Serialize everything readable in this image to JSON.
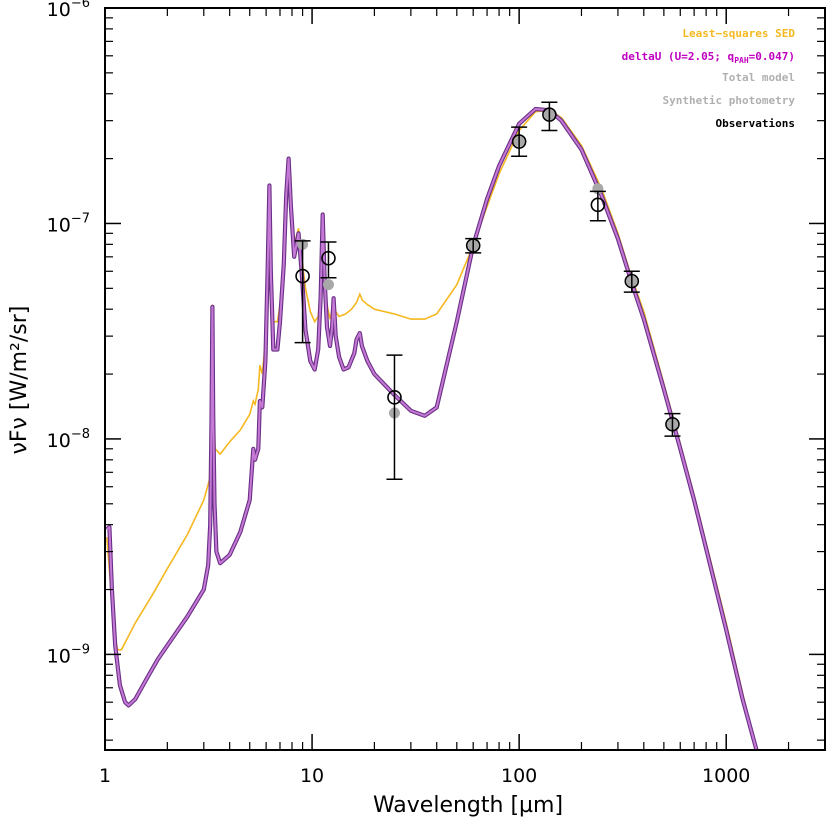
{
  "chart_data": {
    "type": "line",
    "title": "",
    "xlabel": "Wavelength [µm]",
    "ylabel": "νFν [W/m²/sr]",
    "xscale": "log",
    "yscale": "log",
    "xlim": [
      1,
      3000
    ],
    "ylim": [
      3.6e-10,
      1e-06
    ],
    "x_ticks": [
      {
        "value": 1,
        "label": "1"
      },
      {
        "value": 10,
        "label": "10"
      },
      {
        "value": 100,
        "label": "100"
      },
      {
        "value": 1000,
        "label": "1000"
      }
    ],
    "y_ticks": [
      {
        "value": 1e-09,
        "base": "10",
        "exp": "−9"
      },
      {
        "value": 1e-08,
        "base": "10",
        "exp": "−8"
      },
      {
        "value": 1e-07,
        "base": "10",
        "exp": "−7"
      },
      {
        "value": 1e-06,
        "base": "10",
        "exp": "−6"
      }
    ],
    "legend": {
      "placement": "top-right",
      "entries": [
        {
          "label": "Least−squares SED",
          "color": "#f5b820"
        },
        {
          "label_pre": "deltaU (U=2.05; q",
          "label_sub": "PAH",
          "label_post": "=0.047)",
          "color": "#c000c0"
        },
        {
          "label": "Total model",
          "color": "#b0b0b0"
        },
        {
          "label": "Synthetic photometry",
          "color": "#b0b0b0"
        },
        {
          "label": "Observations",
          "color": "#000000"
        }
      ]
    },
    "series": [
      {
        "name": "Least-squares SED",
        "color": "#f5b820",
        "points": [
          [
            1.02,
            3.5e-09
          ],
          [
            1.06,
            2.2e-09
          ],
          [
            1.1,
            1.3e-09
          ],
          [
            1.15,
            1.05e-09
          ],
          [
            1.2,
            1.05e-09
          ],
          [
            1.4,
            1.4e-09
          ],
          [
            1.7,
            1.9e-09
          ],
          [
            2.0,
            2.5e-09
          ],
          [
            2.5,
            3.6e-09
          ],
          [
            3.0,
            5.2e-09
          ],
          [
            3.2,
            6.5e-09
          ],
          [
            3.27,
            1.5e-08
          ],
          [
            3.3,
            4.2e-08
          ],
          [
            3.33,
            1.5e-08
          ],
          [
            3.4,
            9e-09
          ],
          [
            3.6,
            8.5e-09
          ],
          [
            4.0,
            9.7e-09
          ],
          [
            4.5,
            1.1e-08
          ],
          [
            5.0,
            1.3e-08
          ],
          [
            5.2,
            1.5e-08
          ],
          [
            5.3,
            1.45e-08
          ],
          [
            5.5,
            1.7e-08
          ],
          [
            5.6,
            2.2e-08
          ],
          [
            5.75,
            2e-08
          ],
          [
            5.9,
            2.6e-08
          ],
          [
            6.05,
            4e-08
          ],
          [
            6.15,
            8e-08
          ],
          [
            6.22,
            1.5e-07
          ],
          [
            6.3,
            8e-08
          ],
          [
            6.5,
            3.5e-08
          ],
          [
            6.8,
            3.5e-08
          ],
          [
            7.0,
            4.2e-08
          ],
          [
            7.3,
            7e-08
          ],
          [
            7.5,
            1.35e-07
          ],
          [
            7.7,
            2e-07
          ],
          [
            7.9,
            1.2e-07
          ],
          [
            8.2,
            8e-08
          ],
          [
            8.6,
            9.5e-08
          ],
          [
            8.9,
            7e-08
          ],
          [
            9.3,
            5e-08
          ],
          [
            9.8,
            3.9e-08
          ],
          [
            10.3,
            3.5e-08
          ],
          [
            10.7,
            3.7e-08
          ],
          [
            11.0,
            5e-08
          ],
          [
            11.25,
            1.1e-07
          ],
          [
            11.5,
            6e-08
          ],
          [
            11.8,
            4.2e-08
          ],
          [
            12.2,
            3.6e-08
          ],
          [
            12.5,
            4e-08
          ],
          [
            12.7,
            4.5e-08
          ],
          [
            13.0,
            3.9e-08
          ],
          [
            13.5,
            3.7e-08
          ],
          [
            14.5,
            3.8e-08
          ],
          [
            15.5,
            4e-08
          ],
          [
            16.4,
            4.3e-08
          ],
          [
            17.0,
            4.7e-08
          ],
          [
            17.5,
            4.4e-08
          ],
          [
            18.5,
            4.2e-08
          ],
          [
            20,
            4e-08
          ],
          [
            25,
            3.8e-08
          ],
          [
            30,
            3.6e-08
          ],
          [
            35,
            3.6e-08
          ],
          [
            40,
            3.8e-08
          ],
          [
            50,
            5.2e-08
          ],
          [
            60,
            7.9e-08
          ],
          [
            70,
            1.2e-07
          ],
          [
            80,
            1.7e-07
          ],
          [
            100,
            2.7e-07
          ],
          [
            120,
            3.3e-07
          ],
          [
            140,
            3.35e-07
          ],
          [
            160,
            3.1e-07
          ],
          [
            200,
            2.3e-07
          ],
          [
            250,
            1.45e-07
          ],
          [
            300,
            9e-08
          ],
          [
            350,
            5.6e-08
          ],
          [
            400,
            3.9e-08
          ],
          [
            500,
            1.8e-08
          ],
          [
            600,
            9.5e-09
          ],
          [
            700,
            5.5e-09
          ],
          [
            800,
            3.3e-09
          ],
          [
            1000,
            1.4e-09
          ],
          [
            1200,
            6.6e-10
          ],
          [
            1400,
            3.6e-10
          ]
        ]
      },
      {
        "name": "deltaU (U=2.05; qPAH=0.047)",
        "color": "#b060c0",
        "points": [
          [
            1.02,
            3.8e-09
          ],
          [
            1.05,
            3.9e-09
          ],
          [
            1.08,
            2e-09
          ],
          [
            1.12,
            1.1e-09
          ],
          [
            1.18,
            7.2e-10
          ],
          [
            1.25,
            6e-10
          ],
          [
            1.3,
            5.8e-10
          ],
          [
            1.4,
            6.2e-10
          ],
          [
            1.6,
            7.8e-10
          ],
          [
            1.8,
            9.5e-10
          ],
          [
            2.0,
            1.1e-09
          ],
          [
            2.5,
            1.5e-09
          ],
          [
            3.0,
            2e-09
          ],
          [
            3.15,
            2.6e-09
          ],
          [
            3.22,
            4e-09
          ],
          [
            3.27,
            1.2e-08
          ],
          [
            3.3,
            4.1e-08
          ],
          [
            3.33,
            1.3e-08
          ],
          [
            3.38,
            5e-09
          ],
          [
            3.45,
            3e-09
          ],
          [
            3.6,
            2.65e-09
          ],
          [
            4.0,
            2.9e-09
          ],
          [
            4.5,
            3.7e-09
          ],
          [
            5.0,
            5.2e-09
          ],
          [
            5.2,
            9e-09
          ],
          [
            5.3,
            8e-09
          ],
          [
            5.5,
            9e-09
          ],
          [
            5.6,
            1.5e-08
          ],
          [
            5.75,
            1.4e-08
          ],
          [
            5.95,
            2.3e-08
          ],
          [
            6.1,
            6e-08
          ],
          [
            6.22,
            1.5e-07
          ],
          [
            6.32,
            6e-08
          ],
          [
            6.5,
            2.6e-08
          ],
          [
            6.8,
            2.6e-08
          ],
          [
            7.0,
            3.5e-08
          ],
          [
            7.3,
            6.5e-08
          ],
          [
            7.5,
            1.35e-07
          ],
          [
            7.7,
            2e-07
          ],
          [
            7.9,
            1.2e-07
          ],
          [
            8.2,
            7e-08
          ],
          [
            8.6,
            9e-08
          ],
          [
            8.9,
            6e-08
          ],
          [
            9.3,
            3.2e-08
          ],
          [
            9.8,
            2.3e-08
          ],
          [
            10.3,
            2.1e-08
          ],
          [
            10.7,
            2.6e-08
          ],
          [
            11.0,
            4.5e-08
          ],
          [
            11.25,
            1.1e-07
          ],
          [
            11.5,
            5.5e-08
          ],
          [
            11.8,
            3.3e-08
          ],
          [
            12.2,
            2.7e-08
          ],
          [
            12.5,
            3.3e-08
          ],
          [
            12.7,
            4.5e-08
          ],
          [
            13.0,
            3e-08
          ],
          [
            13.5,
            2.4e-08
          ],
          [
            14.2,
            2.1e-08
          ],
          [
            15.0,
            2.15e-08
          ],
          [
            16.0,
            2.5e-08
          ],
          [
            16.4,
            2.9e-08
          ],
          [
            17.0,
            3.1e-08
          ],
          [
            17.4,
            2.7e-08
          ],
          [
            18.5,
            2.3e-08
          ],
          [
            20,
            2e-08
          ],
          [
            25,
            1.6e-08
          ],
          [
            30,
            1.35e-08
          ],
          [
            35,
            1.28e-08
          ],
          [
            40,
            1.4e-08
          ],
          [
            50,
            3.5e-08
          ],
          [
            60,
            7.9e-08
          ],
          [
            70,
            1.3e-07
          ],
          [
            80,
            1.85e-07
          ],
          [
            100,
            2.9e-07
          ],
          [
            120,
            3.4e-07
          ],
          [
            140,
            3.35e-07
          ],
          [
            160,
            3e-07
          ],
          [
            200,
            2.2e-07
          ],
          [
            250,
            1.35e-07
          ],
          [
            300,
            8.5e-08
          ],
          [
            350,
            5.3e-08
          ],
          [
            400,
            3.6e-08
          ],
          [
            500,
            1.7e-08
          ],
          [
            600,
            9e-09
          ],
          [
            700,
            5.2e-09
          ],
          [
            800,
            3.1e-09
          ],
          [
            1000,
            1.3e-09
          ],
          [
            1200,
            6.2e-10
          ],
          [
            1400,
            3.6e-10
          ]
        ]
      }
    ],
    "synthetic_photometry": [
      {
        "x": 9,
        "y": 8e-08
      },
      {
        "x": 12,
        "y": 5.2e-08
      },
      {
        "x": 25,
        "y": 1.32e-08
      },
      {
        "x": 60,
        "y": 7.9e-08
      },
      {
        "x": 100,
        "y": 2.4e-07
      },
      {
        "x": 140,
        "y": 3.2e-07
      },
      {
        "x": 240,
        "y": 1.45e-07
      },
      {
        "x": 350,
        "y": 5.4e-08
      },
      {
        "x": 550,
        "y": 1.17e-08
      }
    ],
    "observations": [
      {
        "x": 9,
        "y": 5.7e-08,
        "ylo": 2.8e-08,
        "yhi": 8.3e-08
      },
      {
        "x": 12,
        "y": 6.9e-08,
        "ylo": 5.6e-08,
        "yhi": 8.2e-08
      },
      {
        "x": 25,
        "y": 1.56e-08,
        "ylo": 6.5e-09,
        "yhi": 2.45e-08
      },
      {
        "x": 60,
        "y": 7.9e-08,
        "ylo": 7.3e-08,
        "yhi": 8.5e-08
      },
      {
        "x": 100,
        "y": 2.4e-07,
        "ylo": 2.05e-07,
        "yhi": 2.8e-07
      },
      {
        "x": 140,
        "y": 3.2e-07,
        "ylo": 2.7e-07,
        "yhi": 3.65e-07
      },
      {
        "x": 240,
        "y": 1.22e-07,
        "ylo": 1.03e-07,
        "yhi": 1.41e-07
      },
      {
        "x": 350,
        "y": 5.4e-08,
        "ylo": 4.8e-08,
        "yhi": 6e-08
      },
      {
        "x": 550,
        "y": 1.17e-08,
        "ylo": 1.03e-08,
        "yhi": 1.31e-08
      }
    ]
  }
}
